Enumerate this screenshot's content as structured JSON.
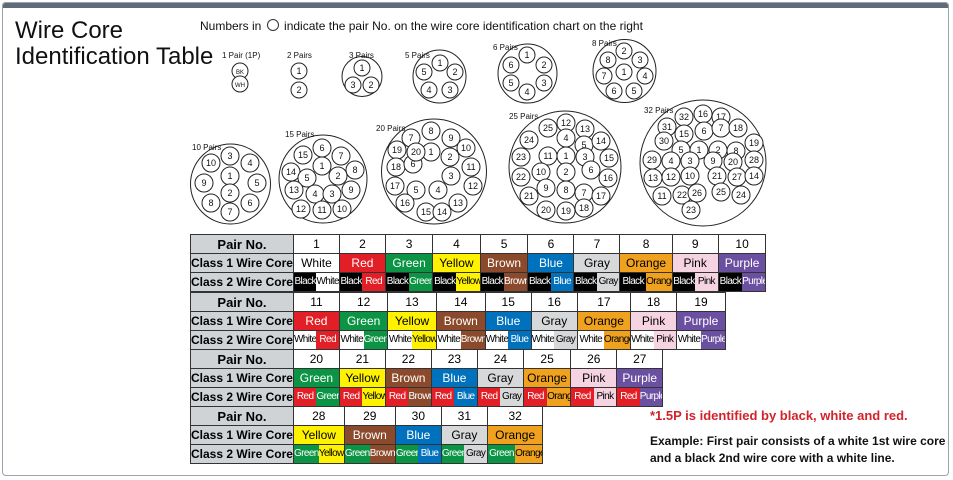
{
  "title_line1": "Wire Core",
  "title_line2": "Identification Table",
  "note_before": "Numbers in",
  "note_after": "indicate the pair No. on the wire core identification chart on the right",
  "diagrams": [
    {
      "label": "1 Pair (1P)",
      "nums": [
        "BK",
        "WH"
      ]
    },
    {
      "label": "2 Pairs",
      "nums": [
        "1",
        "2"
      ]
    },
    {
      "label": "3 Pairs",
      "nums": [
        "1",
        "3",
        "2"
      ]
    },
    {
      "label": "5 Pairs",
      "nums": [
        "1",
        "5",
        "2",
        "4",
        "3"
      ]
    },
    {
      "label": "6 Pairs",
      "nums": [
        "1",
        "6",
        "2",
        "5",
        "3",
        "4"
      ]
    },
    {
      "label": "8 Pairs",
      "nums": [
        "2",
        "8",
        "3",
        "1",
        "7",
        "4",
        "6",
        "5"
      ]
    },
    {
      "label": "10 Pairs",
      "nums": [
        "3",
        "10",
        "4",
        "9",
        "1",
        "5",
        "2",
        "8",
        "6",
        "7"
      ]
    },
    {
      "label": "15 Pairs",
      "nums": [
        "6",
        "7",
        "15",
        "1",
        "8",
        "14",
        "5",
        "2",
        "13",
        "4",
        "3",
        "9",
        "12",
        "11",
        "10"
      ]
    },
    {
      "label": "20 Pairs",
      "nums": [
        "8",
        "9",
        "7",
        "10",
        "19",
        "1",
        "2",
        "11",
        "18",
        "6",
        "3",
        "12",
        "17",
        "5",
        "4",
        "16",
        "13",
        "15",
        "14",
        "20"
      ]
    },
    {
      "label": "25 Pairs",
      "nums": [
        "25",
        "12",
        "13",
        "24",
        "4",
        "5",
        "14",
        "23",
        "11",
        "1",
        "3",
        "15",
        "22",
        "10",
        "2",
        "6",
        "16",
        "21",
        "9",
        "8",
        "7",
        "17",
        "20",
        "19",
        "18"
      ]
    },
    {
      "label": "32 Pairs",
      "nums": [
        "32",
        "16",
        "17",
        "31",
        "15",
        "6",
        "7",
        "18",
        "30",
        "5",
        "1",
        "2",
        "8",
        "19",
        "29",
        "4",
        "3",
        "9",
        "20",
        "28",
        "13",
        "12",
        "10",
        "21",
        "27",
        "14",
        "11",
        "22",
        "26",
        "25",
        "24",
        "23"
      ]
    }
  ],
  "blocks": [
    {
      "pairs": [
        {
          "n": "1",
          "c1": "White",
          "c1bg": "#ffffff",
          "c1fg": "#000000",
          "c2": [
            [
              "Black",
              "#000000",
              "#ffffff"
            ],
            [
              "White",
              "#ffffff",
              "#000000"
            ]
          ]
        },
        {
          "n": "2",
          "c1": "Red",
          "c1bg": "#e21f26",
          "c1fg": "#ffffff",
          "c2": [
            [
              "Black",
              "#000000",
              "#ffffff"
            ],
            [
              "Red",
              "#e21f26",
              "#ffffff"
            ]
          ]
        },
        {
          "n": "3",
          "c1": "Green",
          "c1bg": "#0b9444",
          "c1fg": "#ffffff",
          "c2": [
            [
              "Black",
              "#000000",
              "#ffffff"
            ],
            [
              "Green",
              "#0b9444",
              "#ffffff"
            ]
          ]
        },
        {
          "n": "4",
          "c1": "Yellow",
          "c1bg": "#fff200",
          "c1fg": "#000000",
          "c2": [
            [
              "Black",
              "#000000",
              "#ffffff"
            ],
            [
              "Yellow",
              "#fff200",
              "#000000"
            ]
          ]
        },
        {
          "n": "5",
          "c1": "Brown",
          "c1bg": "#8b4a2b",
          "c1fg": "#ffffff",
          "c2": [
            [
              "Black",
              "#000000",
              "#ffffff"
            ],
            [
              "Brown",
              "#8b4a2b",
              "#ffffff"
            ]
          ]
        },
        {
          "n": "6",
          "c1": "Blue",
          "c1bg": "#0071bc",
          "c1fg": "#ffffff",
          "c2": [
            [
              "Black",
              "#000000",
              "#ffffff"
            ],
            [
              "Blue",
              "#0071bc",
              "#ffffff"
            ]
          ]
        },
        {
          "n": "7",
          "c1": "Gray",
          "c1bg": "#d7d8d9",
          "c1fg": "#000000",
          "c2": [
            [
              "Black",
              "#000000",
              "#ffffff"
            ],
            [
              "Gray",
              "#d7d8d9",
              "#000000"
            ]
          ]
        },
        {
          "n": "8",
          "c1": "Orange",
          "c1bg": "#f0a21e",
          "c1fg": "#000000",
          "c2": [
            [
              "Black",
              "#000000",
              "#ffffff"
            ],
            [
              "Orange",
              "#f0a21e",
              "#000000"
            ]
          ]
        },
        {
          "n": "9",
          "c1": "Pink",
          "c1bg": "#f6d3e0",
          "c1fg": "#000000",
          "c2": [
            [
              "Black",
              "#000000",
              "#ffffff"
            ],
            [
              "Pink",
              "#f6d3e0",
              "#000000"
            ]
          ]
        },
        {
          "n": "10",
          "c1": "Purple",
          "c1bg": "#6b4fa0",
          "c1fg": "#ffffff",
          "c2": [
            [
              "Black",
              "#000000",
              "#ffffff"
            ],
            [
              "Purple",
              "#6b4fa0",
              "#ffffff"
            ]
          ]
        }
      ]
    },
    {
      "pairs": [
        {
          "n": "11",
          "c1": "Red",
          "c1bg": "#e21f26",
          "c1fg": "#ffffff",
          "c2": [
            [
              "White",
              "#ffffff",
              "#000000"
            ],
            [
              "Red",
              "#e21f26",
              "#ffffff"
            ]
          ]
        },
        {
          "n": "12",
          "c1": "Green",
          "c1bg": "#0b9444",
          "c1fg": "#ffffff",
          "c2": [
            [
              "White",
              "#ffffff",
              "#000000"
            ],
            [
              "Green",
              "#0b9444",
              "#ffffff"
            ]
          ]
        },
        {
          "n": "13",
          "c1": "Yellow",
          "c1bg": "#fff200",
          "c1fg": "#000000",
          "c2": [
            [
              "White",
              "#ffffff",
              "#000000"
            ],
            [
              "Yellow",
              "#fff200",
              "#000000"
            ]
          ]
        },
        {
          "n": "14",
          "c1": "Brown",
          "c1bg": "#8b4a2b",
          "c1fg": "#ffffff",
          "c2": [
            [
              "White",
              "#ffffff",
              "#000000"
            ],
            [
              "Brown",
              "#8b4a2b",
              "#ffffff"
            ]
          ]
        },
        {
          "n": "15",
          "c1": "Blue",
          "c1bg": "#0071bc",
          "c1fg": "#ffffff",
          "c2": [
            [
              "White",
              "#ffffff",
              "#000000"
            ],
            [
              "Blue",
              "#0071bc",
              "#ffffff"
            ]
          ]
        },
        {
          "n": "16",
          "c1": "Gray",
          "c1bg": "#d7d8d9",
          "c1fg": "#000000",
          "c2": [
            [
              "White",
              "#ffffff",
              "#000000"
            ],
            [
              "Gray",
              "#d7d8d9",
              "#000000"
            ]
          ]
        },
        {
          "n": "17",
          "c1": "Orange",
          "c1bg": "#f0a21e",
          "c1fg": "#000000",
          "c2": [
            [
              "White",
              "#ffffff",
              "#000000"
            ],
            [
              "Orange",
              "#f0a21e",
              "#000000"
            ]
          ]
        },
        {
          "n": "18",
          "c1": "Pink",
          "c1bg": "#f6d3e0",
          "c1fg": "#000000",
          "c2": [
            [
              "White",
              "#ffffff",
              "#000000"
            ],
            [
              "Pink",
              "#f6d3e0",
              "#000000"
            ]
          ]
        },
        {
          "n": "19",
          "c1": "Purple",
          "c1bg": "#6b4fa0",
          "c1fg": "#ffffff",
          "c2": [
            [
              "White",
              "#ffffff",
              "#000000"
            ],
            [
              "Purple",
              "#6b4fa0",
              "#ffffff"
            ]
          ]
        }
      ]
    },
    {
      "pairs": [
        {
          "n": "20",
          "c1": "Green",
          "c1bg": "#0b9444",
          "c1fg": "#ffffff",
          "c2": [
            [
              "Red",
              "#e21f26",
              "#ffffff"
            ],
            [
              "Green",
              "#0b9444",
              "#ffffff"
            ]
          ]
        },
        {
          "n": "21",
          "c1": "Yellow",
          "c1bg": "#fff200",
          "c1fg": "#000000",
          "c2": [
            [
              "Red",
              "#e21f26",
              "#ffffff"
            ],
            [
              "Yellow",
              "#fff200",
              "#000000"
            ]
          ]
        },
        {
          "n": "22",
          "c1": "Brown",
          "c1bg": "#8b4a2b",
          "c1fg": "#ffffff",
          "c2": [
            [
              "Red",
              "#e21f26",
              "#ffffff"
            ],
            [
              "Brown",
              "#8b4a2b",
              "#ffffff"
            ]
          ]
        },
        {
          "n": "23",
          "c1": "Blue",
          "c1bg": "#0071bc",
          "c1fg": "#ffffff",
          "c2": [
            [
              "Red",
              "#e21f26",
              "#ffffff"
            ],
            [
              "Blue",
              "#0071bc",
              "#ffffff"
            ]
          ]
        },
        {
          "n": "24",
          "c1": "Gray",
          "c1bg": "#d7d8d9",
          "c1fg": "#000000",
          "c2": [
            [
              "Red",
              "#e21f26",
              "#ffffff"
            ],
            [
              "Gray",
              "#d7d8d9",
              "#000000"
            ]
          ]
        },
        {
          "n": "25",
          "c1": "Orange",
          "c1bg": "#f0a21e",
          "c1fg": "#000000",
          "c2": [
            [
              "Red",
              "#e21f26",
              "#ffffff"
            ],
            [
              "Orange",
              "#f0a21e",
              "#000000"
            ]
          ]
        },
        {
          "n": "26",
          "c1": "Pink",
          "c1bg": "#f6d3e0",
          "c1fg": "#000000",
          "c2": [
            [
              "Red",
              "#e21f26",
              "#ffffff"
            ],
            [
              "Pink",
              "#f6d3e0",
              "#000000"
            ]
          ]
        },
        {
          "n": "27",
          "c1": "Purple",
          "c1bg": "#6b4fa0",
          "c1fg": "#ffffff",
          "c2": [
            [
              "Red",
              "#e21f26",
              "#ffffff"
            ],
            [
              "Purple",
              "#6b4fa0",
              "#ffffff"
            ]
          ]
        }
      ]
    },
    {
      "pairs": [
        {
          "n": "28",
          "c1": "Yellow",
          "c1bg": "#fff200",
          "c1fg": "#000000",
          "c2": [
            [
              "Green",
              "#0b9444",
              "#ffffff"
            ],
            [
              "Yellow",
              "#fff200",
              "#000000"
            ]
          ]
        },
        {
          "n": "29",
          "c1": "Brown",
          "c1bg": "#8b4a2b",
          "c1fg": "#ffffff",
          "c2": [
            [
              "Green",
              "#0b9444",
              "#ffffff"
            ],
            [
              "Brown",
              "#8b4a2b",
              "#ffffff"
            ]
          ]
        },
        {
          "n": "30",
          "c1": "Blue",
          "c1bg": "#0071bc",
          "c1fg": "#ffffff",
          "c2": [
            [
              "Green",
              "#0b9444",
              "#ffffff"
            ],
            [
              "Blue",
              "#0071bc",
              "#ffffff"
            ]
          ]
        },
        {
          "n": "31",
          "c1": "Gray",
          "c1bg": "#d7d8d9",
          "c1fg": "#000000",
          "c2": [
            [
              "Green",
              "#0b9444",
              "#ffffff"
            ],
            [
              "Gray",
              "#d7d8d9",
              "#000000"
            ]
          ]
        },
        {
          "n": "32",
          "c1": "Orange",
          "c1bg": "#f0a21e",
          "c1fg": "#000000",
          "c2": [
            [
              "Green",
              "#0b9444",
              "#ffffff"
            ],
            [
              "Orange",
              "#f0a21e",
              "#000000"
            ]
          ]
        }
      ]
    }
  ],
  "row_headers": {
    "pair": "Pair No.",
    "class1": "Class 1 Wire Core",
    "class2": "Class 2 Wire Core"
  },
  "note_15p": "*1.5P is identified by black, white and red.",
  "example": "Example: First pair consists of a white 1st wire core and a black 2nd wire core with a white line."
}
